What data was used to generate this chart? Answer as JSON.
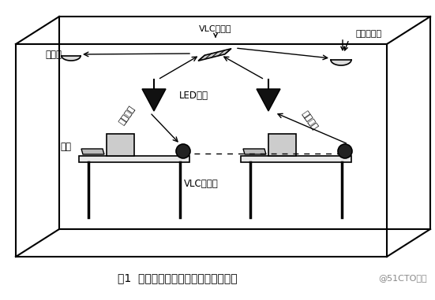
{
  "title": "图1  室内可见光通信的无线局域网系统",
  "watermark": "@51CTO博客",
  "bg_color": "#ffffff",
  "line_color": "#000000",
  "labels": {
    "vlc_hub": "VLC集线器",
    "photo_receiver": "光电接收器",
    "ceiling": "天花板",
    "led_source": "LED光源",
    "forward_link": "前向链路",
    "backward_link": "反向链路",
    "terminal": "终端",
    "vlc_adapter": "VLC适配器"
  },
  "figsize": [
    5.51,
    3.81
  ],
  "dpi": 100
}
